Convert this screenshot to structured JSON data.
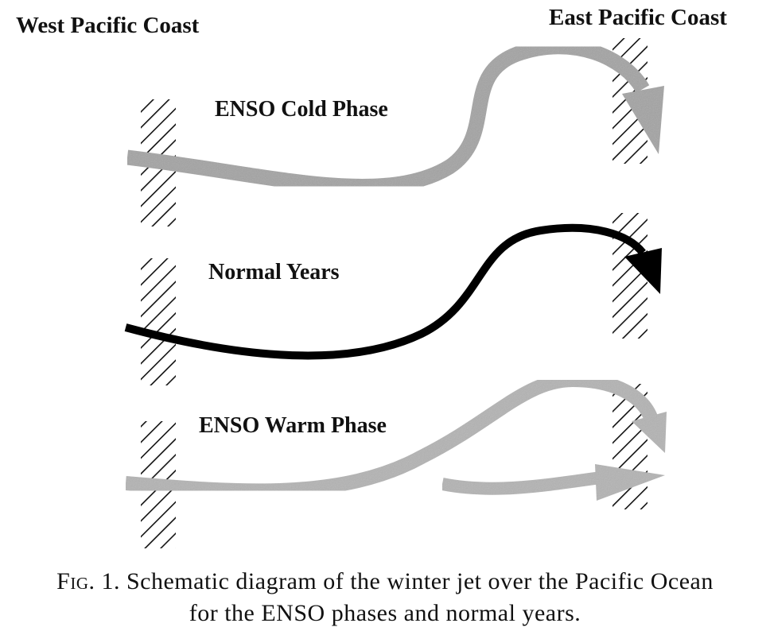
{
  "labels": {
    "west_coast": "West Pacific Coast",
    "east_coast": "East Pacific Coast",
    "cold_phase": "ENSO Cold Phase",
    "normal_years": "Normal Years",
    "warm_phase": "ENSO Warm Phase"
  },
  "caption": {
    "fig_tag": "Fig. 1.",
    "line1": "Schematic diagram of the winter jet over the Pacific Ocean",
    "line2": "for the ENSO phases and normal years."
  },
  "colors": {
    "cold_jet": "#a3a3a3",
    "normal_jet": "#000000",
    "warm_jet": "#b3b3b3",
    "hatch": "#111111"
  }
}
